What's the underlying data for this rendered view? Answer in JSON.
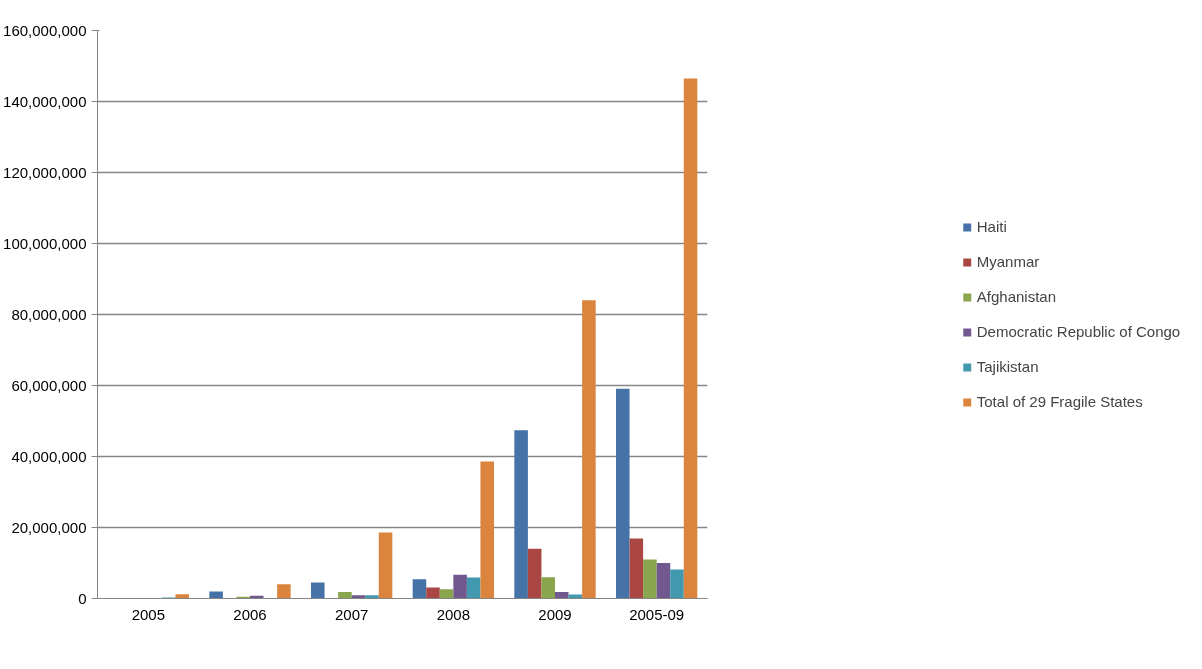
{
  "chart_data": {
    "type": "bar",
    "categories": [
      "2005",
      "2006",
      "2007",
      "2008",
      "2009",
      "2005-09"
    ],
    "series": [
      {
        "name": "Haiti",
        "color": "#4572a7",
        "values": [
          null,
          2000000,
          4500000,
          5400000,
          47400000,
          59100000
        ]
      },
      {
        "name": "Myanmar",
        "color": "#aa4643",
        "values": [
          null,
          null,
          null,
          3100000,
          14000000,
          16900000
        ]
      },
      {
        "name": "Afghanistan",
        "color": "#89a54e",
        "values": [
          null,
          500000,
          1800000,
          2600000,
          6000000,
          11000000
        ]
      },
      {
        "name": "Democratic Republic of Congo",
        "color": "#71588f",
        "values": [
          null,
          800000,
          900000,
          6700000,
          1800000,
          10000000
        ]
      },
      {
        "name": "Tajikistan",
        "color": "#4198af",
        "values": [
          300000,
          null,
          900000,
          5900000,
          1100000,
          8200000
        ]
      },
      {
        "name": "Total of 29 Fragile States",
        "color": "#db843d",
        "values": [
          1200000,
          4000000,
          18600000,
          38600000,
          84000000,
          146500000
        ]
      }
    ],
    "ylim": [
      0,
      160000000
    ],
    "yticks": [
      {
        "value": 0,
        "label": "0"
      },
      {
        "value": 20000000,
        "label": "20,000,000"
      },
      {
        "value": 40000000,
        "label": "40,000,000"
      },
      {
        "value": 60000000,
        "label": "60,000,000"
      },
      {
        "value": 80000000,
        "label": "80,000,000"
      },
      {
        "value": 100000000,
        "label": "100,000,000"
      },
      {
        "value": 120000000,
        "label": "120,000,000"
      },
      {
        "value": 140000000,
        "label": "140,000,000"
      },
      {
        "value": 160000000,
        "label": "160,000,000"
      }
    ],
    "grid": "y",
    "legend": "right"
  }
}
